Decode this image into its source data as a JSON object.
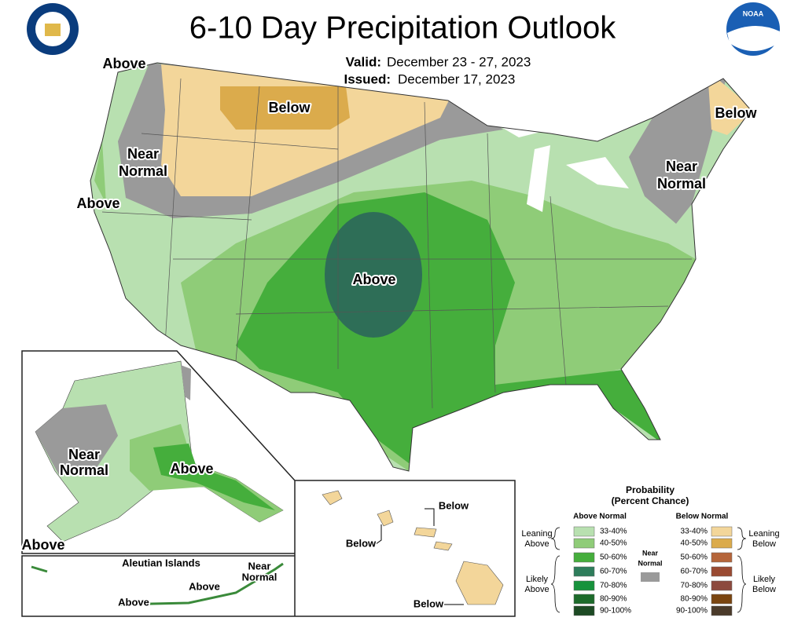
{
  "header": {
    "title": "6-10 Day Precipitation Outlook",
    "valid_label": "Valid:",
    "valid": "December 23 - 27, 2023",
    "issued_label": "Issued:",
    "issued": "December 17, 2023",
    "noaa_logo": "NOAA"
  },
  "map": {
    "labels": [
      [
        "Above"
      ],
      [
        "Near",
        "Normal"
      ],
      [
        "Above"
      ],
      [
        "Below"
      ],
      [
        "Below"
      ],
      [
        "Near",
        "Normal"
      ],
      [
        "Above"
      ]
    ]
  },
  "alaska": {
    "labels": [
      [
        "Near",
        "Normal"
      ],
      [
        "Above"
      ],
      [
        "Above"
      ]
    ]
  },
  "aleutians": {
    "title": "Aleutian Islands",
    "labels": [
      [
        "Near",
        "Normal"
      ],
      [
        "Above"
      ],
      [
        "Above"
      ]
    ]
  },
  "hawaii": {
    "labels": [
      [
        "Below"
      ],
      [
        "Below"
      ],
      [
        "Below"
      ]
    ]
  },
  "legend": {
    "title": "Probability",
    "subtitle": "(Percent Chance)",
    "above_header": "Above Normal",
    "below_header": "Below Normal",
    "leaning_above": [
      "Leaning",
      "Above"
    ],
    "likely_above": [
      "Likely",
      "Above"
    ],
    "near_normal": [
      "Near",
      "Normal"
    ],
    "leaning_below": [
      "Leaning",
      "Below"
    ],
    "likely_below": [
      "Likely",
      "Below"
    ],
    "above_ranges": [
      "33-40%",
      "40-50%",
      "50-60%",
      "60-70%",
      "70-80%",
      "80-90%",
      "90-100%"
    ],
    "below_ranges": [
      "33-40%",
      "40-50%",
      "50-60%",
      "60-70%",
      "70-80%",
      "80-90%",
      "90-100%"
    ]
  }
}
